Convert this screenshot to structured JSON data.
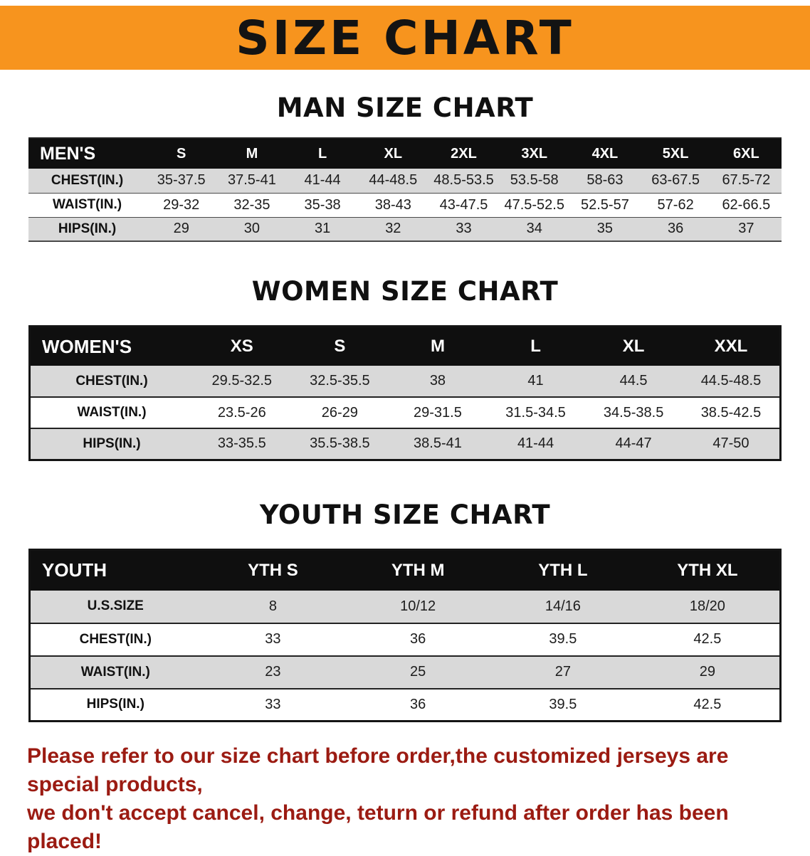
{
  "banner": {
    "title": "SIZE CHART",
    "bg_color": "#F7941E"
  },
  "sections": [
    {
      "key": "men",
      "heading": "MAN SIZE CHART",
      "table": {
        "header": [
          "MEN'S",
          "S",
          "M",
          "L",
          "XL",
          "2XL",
          "3XL",
          "4XL",
          "5XL",
          "6XL"
        ],
        "rows": [
          [
            "CHEST(IN.)",
            "35-37.5",
            "37.5-41",
            "41-44",
            "44-48.5",
            "48.5-53.5",
            "53.5-58",
            "58-63",
            "63-67.5",
            "67.5-72"
          ],
          [
            "WAIST(IN.)",
            "29-32",
            "32-35",
            "35-38",
            "38-43",
            "43-47.5",
            "47.5-52.5",
            "52.5-57",
            "57-62",
            "62-66.5"
          ],
          [
            "HIPS(IN.)",
            "29",
            "30",
            "31",
            "32",
            "33",
            "34",
            "35",
            "36",
            "37"
          ]
        ]
      }
    },
    {
      "key": "women",
      "heading": "WOMEN SIZE CHART",
      "table": {
        "header": [
          "WOMEN'S",
          "XS",
          "S",
          "M",
          "L",
          "XL",
          "XXL"
        ],
        "rows": [
          [
            "CHEST(IN.)",
            "29.5-32.5",
            "32.5-35.5",
            "38",
            "41",
            "44.5",
            "44.5-48.5"
          ],
          [
            "WAIST(IN.)",
            "23.5-26",
            "26-29",
            "29-31.5",
            "31.5-34.5",
            "34.5-38.5",
            "38.5-42.5"
          ],
          [
            "HIPS(IN.)",
            "33-35.5",
            "35.5-38.5",
            "38.5-41",
            "41-44",
            "44-47",
            "47-50"
          ]
        ]
      }
    },
    {
      "key": "youth",
      "heading": "YOUTH SIZE CHART",
      "table": {
        "header": [
          "YOUTH",
          "YTH S",
          "YTH M",
          "YTH L",
          "YTH XL"
        ],
        "rows": [
          [
            "U.S.SIZE",
            "8",
            "10/12",
            "14/16",
            "18/20"
          ],
          [
            "CHEST(IN.)",
            "33",
            "36",
            "39.5",
            "42.5"
          ],
          [
            "WAIST(IN.)",
            "23",
            "25",
            "27",
            "29"
          ],
          [
            "HIPS(IN.)",
            "33",
            "36",
            "39.5",
            "42.5"
          ]
        ]
      }
    }
  ],
  "footer": {
    "line1": "Please refer to our size chart before order,the customized jerseys are special products,",
    "line2": "we don't accept cancel, change, teturn or refund after order has been placed!",
    "text_color": "#9b1b12"
  }
}
